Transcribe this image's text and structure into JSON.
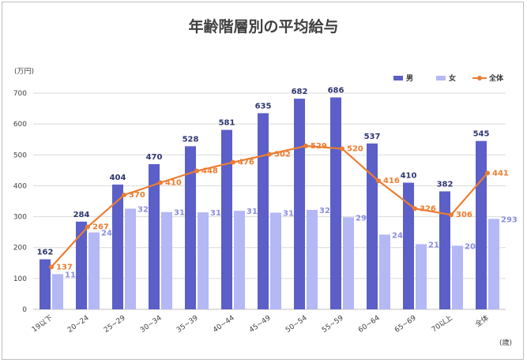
{
  "chart_data": {
    "type": "bar",
    "title": "年齢階層別の平均給与",
    "ylabel": "(万円)",
    "xlabel": "(歳)",
    "ylim": [
      0,
      700
    ],
    "yticks": [
      0,
      100,
      200,
      300,
      400,
      500,
      600,
      700
    ],
    "grid": true,
    "legend_position": "top-right",
    "categories": [
      "19以下",
      "20~24",
      "25~29",
      "30~34",
      "35~39",
      "40~44",
      "45~49",
      "50~54",
      "55~59",
      "60~64",
      "65~69",
      "70以上",
      "全体"
    ],
    "series": [
      {
        "name": "男",
        "type": "bar",
        "color": "#5b5fc7",
        "label_color": "#2e3570",
        "values": [
          162,
          284,
          404,
          470,
          528,
          581,
          635,
          682,
          686,
          537,
          410,
          382,
          545
        ]
      },
      {
        "name": "女",
        "type": "bar",
        "color": "#b4b8f5",
        "label_color": "#8a8fe0",
        "values": [
          114,
          249,
          326,
          315,
          314,
          319,
          313,
          322,
          298,
          242,
          211,
          206,
          293
        ]
      },
      {
        "name": "全体",
        "type": "line",
        "color": "#ed7d31",
        "label_color": "#ed7d31",
        "values": [
          137,
          267,
          370,
          410,
          448,
          476,
          502,
          529,
          520,
          416,
          326,
          306,
          441
        ]
      }
    ]
  }
}
